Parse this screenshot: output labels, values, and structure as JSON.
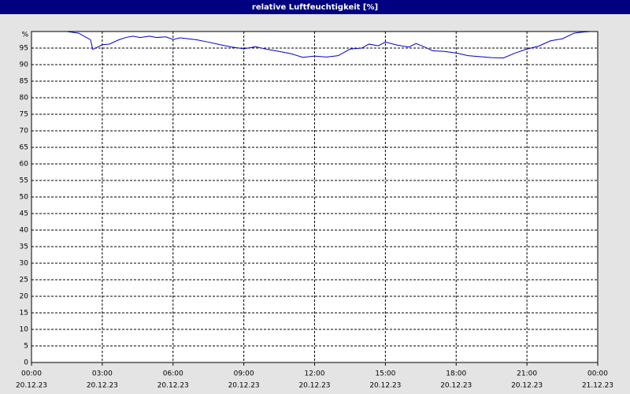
{
  "chart_data": {
    "type": "line",
    "title": "relative Luftfeuchtigkeit [%]",
    "x": [
      0,
      1.5,
      2,
      2.5,
      2.6,
      3,
      3.3,
      3.7,
      4,
      4.3,
      4.6,
      5,
      5.3,
      5.7,
      6,
      6.3,
      7,
      7.5,
      8,
      8.5,
      9,
      9.5,
      10,
      10.5,
      11,
      11.5,
      12,
      12.5,
      13,
      13.5,
      14,
      14.3,
      14.7,
      15,
      15.5,
      16,
      16.3,
      16.7,
      17,
      17.5,
      18,
      18.5,
      19,
      19.5,
      20,
      20.5,
      21,
      21.5,
      22,
      22.5,
      23,
      23.3,
      23.7
    ],
    "series": [
      {
        "color": "#0000cc",
        "values": [
          100,
          100,
          99.5,
          97.5,
          94.6,
          96,
          96.2,
          97.5,
          98.2,
          98.6,
          98.2,
          98.6,
          98.2,
          98.4,
          97.6,
          98.1,
          97.5,
          96.8,
          96,
          95.3,
          94.8,
          95.4,
          94.6,
          94,
          93.3,
          92.2,
          92.6,
          92.3,
          92.7,
          94.7,
          95,
          96.2,
          95.7,
          96.8,
          95.9,
          95.3,
          96.4,
          95.2,
          94.2,
          94,
          93.5,
          92.7,
          92.4,
          92.1,
          92,
          93.5,
          94.7,
          95.6,
          97.2,
          97.8,
          99.5,
          99.8,
          100
        ]
      }
    ],
    "xlim": [
      0,
      24
    ],
    "xticks": [
      {
        "value": 0,
        "label": "00:00"
      },
      {
        "value": 3,
        "label": "03:00"
      },
      {
        "value": 6,
        "label": "06:00"
      },
      {
        "value": 9,
        "label": "09:00"
      },
      {
        "value": 12,
        "label": "12:00"
      },
      {
        "value": 15,
        "label": "15:00"
      },
      {
        "value": 18,
        "label": "18:00"
      },
      {
        "value": 21,
        "label": "21:00"
      },
      {
        "value": 24,
        "label": "00:00"
      }
    ],
    "xtick_dates": [
      "20.12.23",
      "20.12.23",
      "20.12.23",
      "20.12.23",
      "20.12.23",
      "20.12.23",
      "20.12.23",
      "20.12.23",
      "21.12.23"
    ],
    "ylim": [
      0,
      100
    ],
    "yticks": [
      0,
      5,
      10,
      15,
      20,
      25,
      30,
      35,
      40,
      45,
      50,
      55,
      60,
      65,
      70,
      75,
      80,
      85,
      90,
      95,
      {
        "value": 100,
        "label": "%"
      }
    ],
    "grid": true
  }
}
